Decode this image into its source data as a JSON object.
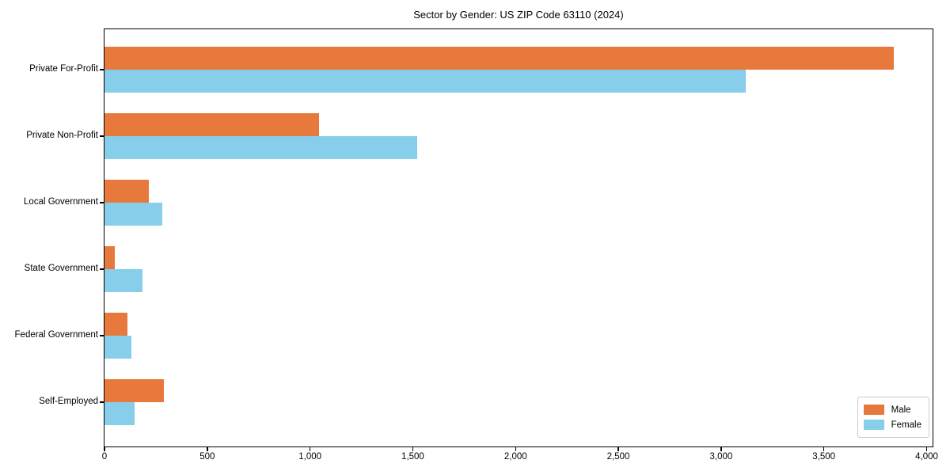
{
  "title": "Sector by Gender: US ZIP Code 63110 (2024)",
  "legend": {
    "position": "lower right",
    "items": [
      {
        "label": "Male",
        "color": "#E8793D"
      },
      {
        "label": "Female",
        "color": "#87CEEB"
      }
    ]
  },
  "chart_data": {
    "type": "bar",
    "orientation": "horizontal",
    "title": "Sector by Gender: US ZIP Code 63110 (2024)",
    "categories": [
      "Private For-Profit",
      "Private Non-Profit",
      "Local Government",
      "State Government",
      "Federal Government",
      "Self-Employed"
    ],
    "series": [
      {
        "name": "Male",
        "color": "#E8793D",
        "values": [
          3840,
          1045,
          215,
          50,
          110,
          290
        ]
      },
      {
        "name": "Female",
        "color": "#87CEEB",
        "values": [
          3120,
          1520,
          280,
          185,
          130,
          145
        ]
      }
    ],
    "xlabel": "",
    "ylabel": "",
    "xlim": [
      0,
      4025
    ],
    "xticks": [
      0,
      500,
      1000,
      1500,
      2000,
      2500,
      3000,
      3500,
      4000
    ],
    "xtick_labels": [
      "0",
      "500",
      "1,000",
      "1,500",
      "2,000",
      "2,500",
      "3,000",
      "3,500",
      "4,000"
    ],
    "grid": false,
    "legend_position": "lower right"
  }
}
